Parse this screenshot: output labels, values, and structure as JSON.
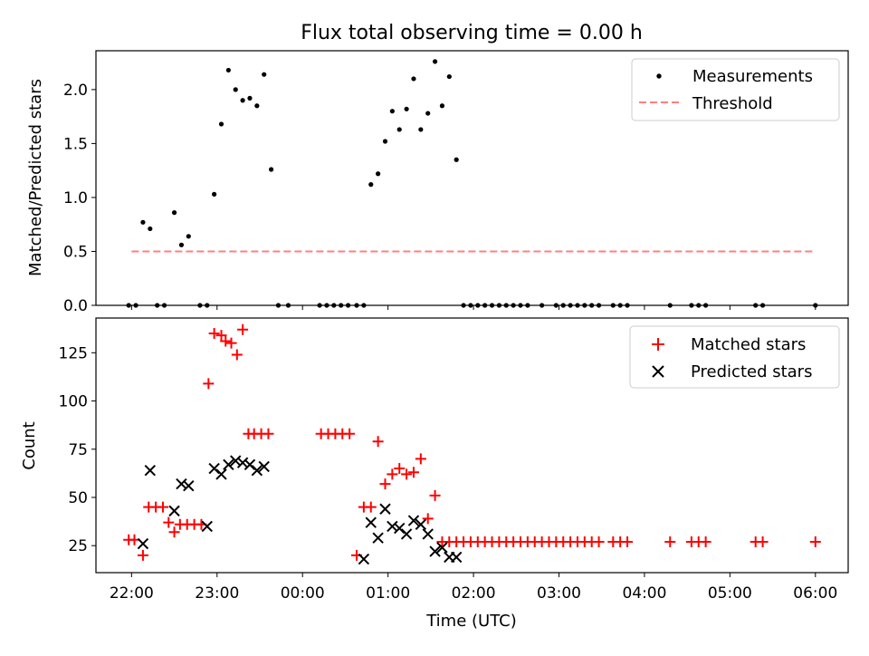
{
  "figure": {
    "title": "Flux total observing time = 0.00 h",
    "xlabel": "Time (UTC)"
  },
  "chart_data": [
    {
      "type": "scatter",
      "panel": "top",
      "ylabel": "Matched/Predicted stars",
      "xlim": [
        "21:35",
        "06:23"
      ],
      "ylim": [
        0,
        2.36
      ],
      "yticks": [
        0.0,
        0.5,
        1.0,
        1.5,
        2.0
      ],
      "ytick_labels": [
        "0.0",
        "0.5",
        "1.0",
        "1.5",
        "2.0"
      ],
      "grid": false,
      "legend": {
        "placement": "top-right",
        "entries": [
          "Measurements",
          "Threshold"
        ]
      },
      "series": [
        {
          "name": "Measurements",
          "kind": "points",
          "color": "#000000",
          "x": [
            "21:58",
            "22:03",
            "22:08",
            "22:13",
            "22:18",
            "22:23",
            "22:30",
            "22:35",
            "22:40",
            "22:48",
            "22:53",
            "22:58",
            "23:03",
            "23:08",
            "23:13",
            "23:18",
            "23:23",
            "23:28",
            "23:33",
            "23:38",
            "23:43",
            "23:50",
            "00:12",
            "00:17",
            "00:22",
            "00:27",
            "00:32",
            "00:38",
            "00:43",
            "00:48",
            "00:53",
            "00:58",
            "01:03",
            "01:08",
            "01:13",
            "01:18",
            "01:23",
            "01:28",
            "01:33",
            "01:38",
            "01:43",
            "01:48",
            "01:53",
            "01:58",
            "02:03",
            "02:08",
            "02:13",
            "02:18",
            "02:23",
            "02:28",
            "02:33",
            "02:38",
            "02:48",
            "02:58",
            "03:03",
            "03:08",
            "03:13",
            "03:18",
            "03:23",
            "03:28",
            "03:38",
            "03:43",
            "03:48",
            "04:18",
            "04:33",
            "04:38",
            "04:43",
            "05:18",
            "05:23",
            "06:00"
          ],
          "y": [
            0,
            0,
            0.77,
            0.71,
            0,
            0,
            0.86,
            0.56,
            0.64,
            0,
            0,
            1.03,
            1.68,
            2.18,
            2.0,
            1.9,
            1.92,
            1.85,
            2.14,
            1.26,
            0,
            0,
            0,
            0,
            0,
            0,
            0,
            0,
            0,
            1.12,
            1.22,
            1.52,
            1.8,
            1.63,
            1.82,
            2.1,
            1.63,
            1.78,
            2.26,
            1.85,
            2.12,
            1.35,
            0,
            0,
            0,
            0,
            0,
            0,
            0,
            0,
            0,
            0,
            0,
            0,
            0,
            0,
            0,
            0,
            0,
            0,
            0,
            0,
            0,
            0,
            0,
            0,
            0,
            0,
            0,
            0
          ]
        },
        {
          "name": "Threshold",
          "kind": "dashed-line",
          "color": "#ff7f7f",
          "x": [
            "22:00",
            "06:00"
          ],
          "y": [
            0.5,
            0.5
          ]
        }
      ]
    },
    {
      "type": "scatter",
      "panel": "bottom",
      "ylabel": "Count",
      "xlim": [
        "21:35",
        "06:23"
      ],
      "ylim": [
        11,
        143
      ],
      "yticks": [
        25,
        50,
        75,
        100,
        125
      ],
      "ytick_labels": [
        "25",
        "50",
        "75",
        "100",
        "125"
      ],
      "xticks": [
        "22:00",
        "23:00",
        "00:00",
        "01:00",
        "02:00",
        "03:00",
        "04:00",
        "05:00",
        "06:00"
      ],
      "xtick_labels": [
        "22:00",
        "23:00",
        "00:00",
        "01:00",
        "02:00",
        "03:00",
        "04:00",
        "05:00",
        "06:00"
      ],
      "grid": false,
      "legend": {
        "placement": "top-right",
        "entries": [
          "Matched stars",
          "Predicted stars"
        ]
      },
      "series": [
        {
          "name": "Matched stars",
          "marker": "plus",
          "color": "#ff0000",
          "x": [
            "21:58",
            "22:02",
            "22:08",
            "22:12",
            "22:17",
            "22:22",
            "22:26",
            "22:30",
            "22:34",
            "22:39",
            "22:44",
            "22:49",
            "22:54",
            "22:58",
            "23:03",
            "23:06",
            "23:10",
            "23:14",
            "23:18",
            "23:22",
            "23:26",
            "23:31",
            "23:36",
            "00:13",
            "00:18",
            "00:23",
            "00:28",
            "00:33",
            "00:38",
            "00:43",
            "00:48",
            "00:53",
            "00:58",
            "01:03",
            "01:08",
            "01:13",
            "01:18",
            "01:23",
            "01:28",
            "01:33",
            "01:38",
            "01:43",
            "01:48",
            "01:53",
            "01:58",
            "02:03",
            "02:08",
            "02:13",
            "02:18",
            "02:23",
            "02:28",
            "02:33",
            "02:38",
            "02:43",
            "02:48",
            "02:53",
            "02:58",
            "03:03",
            "03:08",
            "03:13",
            "03:18",
            "03:23",
            "03:28",
            "03:38",
            "03:43",
            "03:48",
            "04:18",
            "04:33",
            "04:38",
            "04:43",
            "05:18",
            "05:23",
            "06:00"
          ],
          "y": [
            28,
            28,
            20,
            45,
            45,
            45,
            37,
            32,
            36,
            36,
            36,
            36,
            109,
            135,
            134,
            131,
            130,
            124,
            137,
            83,
            83,
            83,
            83,
            83,
            83,
            83,
            83,
            83,
            20,
            45,
            45,
            79,
            57,
            62,
            65,
            62,
            63,
            70,
            39,
            51,
            27,
            27,
            27,
            27,
            27,
            27,
            27,
            27,
            27,
            27,
            27,
            27,
            27,
            27,
            27,
            27,
            27,
            27,
            27,
            27,
            27,
            27,
            27,
            27,
            27,
            27,
            27,
            27,
            27,
            27,
            27,
            27,
            27
          ]
        },
        {
          "name": "Predicted stars",
          "marker": "x",
          "color": "#000000",
          "x": [
            "22:08",
            "22:13",
            "22:30",
            "22:35",
            "22:40",
            "22:53",
            "22:58",
            "23:03",
            "23:08",
            "23:13",
            "23:18",
            "23:23",
            "23:28",
            "23:33",
            "00:43",
            "00:48",
            "00:53",
            "00:58",
            "01:03",
            "01:08",
            "01:13",
            "01:18",
            "01:23",
            "01:28",
            "01:33",
            "01:38",
            "01:43",
            "01:48"
          ],
          "y": [
            26,
            64,
            43,
            57,
            56,
            35,
            65,
            62,
            67,
            69,
            68,
            67,
            64,
            66,
            18,
            37,
            29,
            44,
            35,
            34,
            31,
            38,
            36,
            31,
            22,
            24,
            19,
            19
          ]
        }
      ]
    }
  ]
}
